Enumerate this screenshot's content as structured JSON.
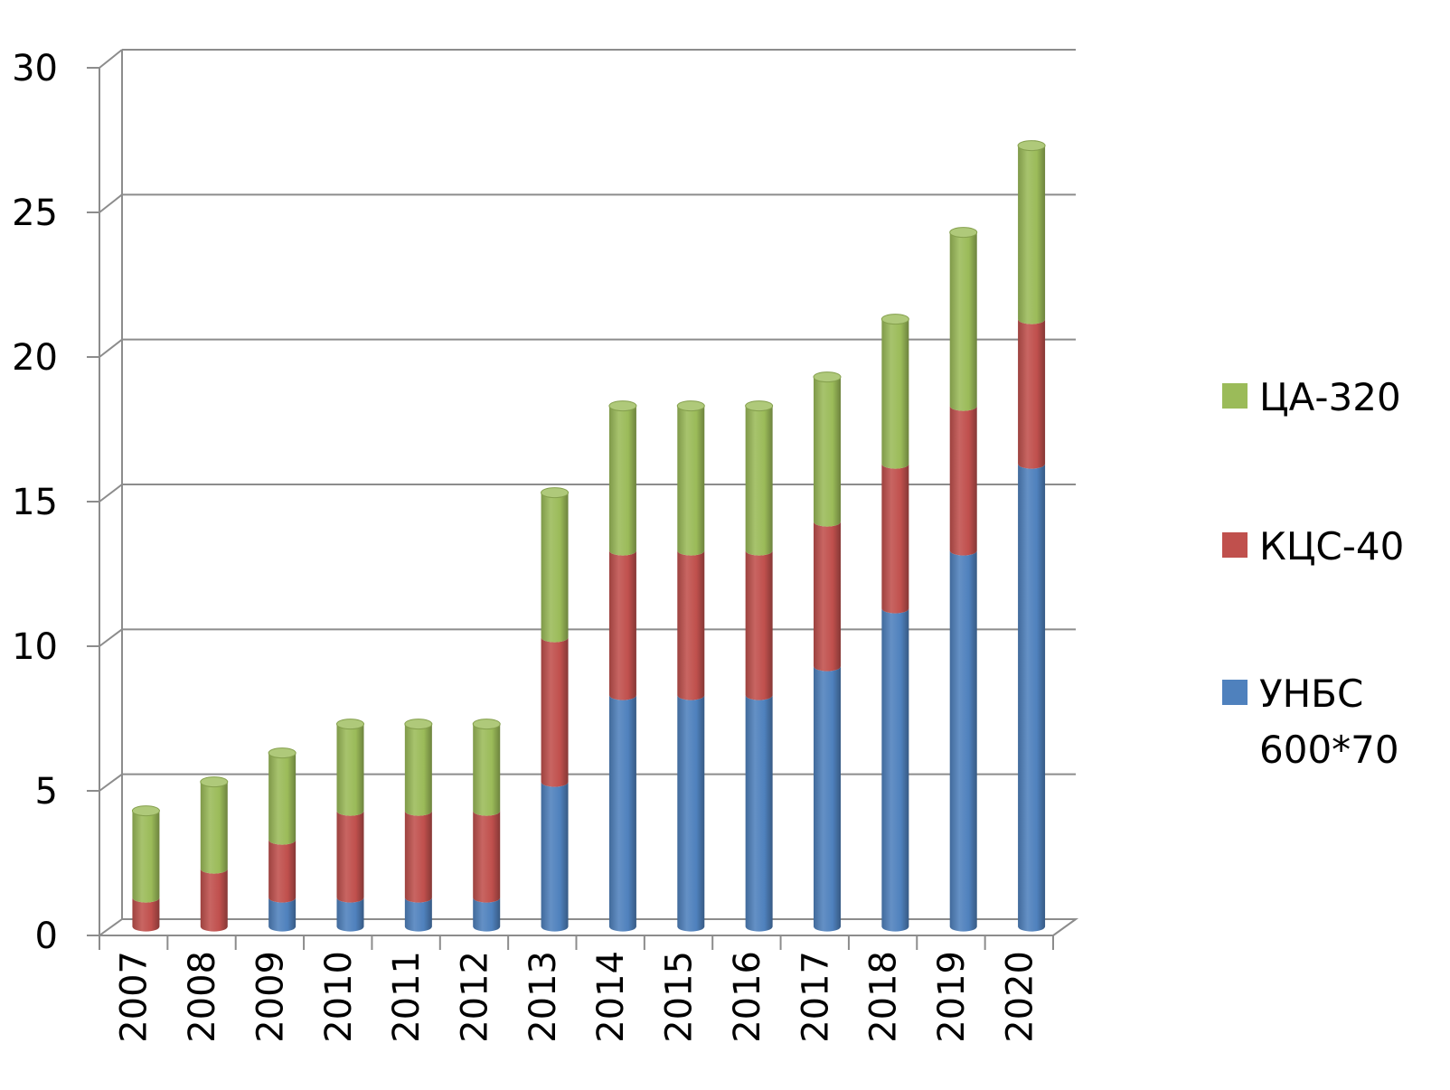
{
  "chart_data": {
    "type": "bar",
    "stacked": true,
    "style": "3d-cylinder",
    "title": "",
    "xlabel": "",
    "ylabel": "",
    "ylim": [
      0,
      30
    ],
    "yticks": [
      "0",
      "5",
      "10",
      "15",
      "20",
      "25",
      "30"
    ],
    "grid": true,
    "legend_position": "right",
    "categories": [
      "2007",
      "2008",
      "2009",
      "2010",
      "2011",
      "2012",
      "2013",
      "2014",
      "2015",
      "2016",
      "2017",
      "2018",
      "2019",
      "2020"
    ],
    "series": [
      {
        "name": "УНБС 600*70",
        "color": "#4F81BD",
        "values": [
          0,
          0,
          1,
          1,
          1,
          1,
          5,
          8,
          8,
          8,
          9,
          11,
          13,
          16
        ]
      },
      {
        "name": "КЦС-40",
        "color": "#C0504D",
        "values": [
          1,
          2,
          2,
          3,
          3,
          3,
          5,
          5,
          5,
          5,
          5,
          5,
          5,
          5
        ]
      },
      {
        "name": "ЦА-320",
        "color": "#9BBB59",
        "values": [
          3,
          3,
          3,
          3,
          3,
          3,
          5,
          5,
          5,
          5,
          5,
          5,
          6,
          6
        ]
      }
    ],
    "legend": {
      "items": [
        {
          "label_lines": [
            "ЦА-320"
          ],
          "series_index": 2
        },
        {
          "label_lines": [
            "КЦС-40"
          ],
          "series_index": 1
        },
        {
          "label_lines": [
            "УНБС",
            "600*70"
          ],
          "series_index": 0
        }
      ]
    }
  }
}
